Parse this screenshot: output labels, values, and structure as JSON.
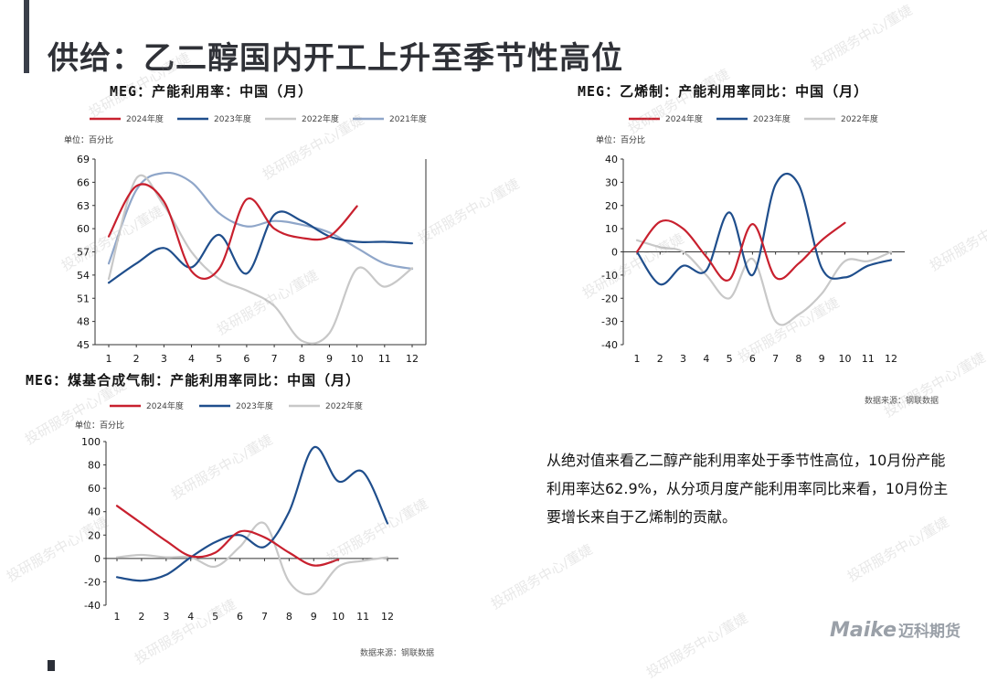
{
  "page": {
    "title": "供给：乙二醇国内开工上升至季节性高位",
    "description": "从绝对值来看乙二醇产能利用率处于季节性高位，10月份产能利用率达62.9%，从分项月度产能利用率同比来看，10月份主要增长来自于乙烯制的贡献。",
    "watermark": "投研服务中心/董婕",
    "logo_en": "Maike",
    "logo_cn": "迈科期货",
    "colors": {
      "accent": "#3a3f4a",
      "s2024": "#c8202e",
      "s2023": "#1f4e8c",
      "s2022": "#c8c8c8",
      "s2021": "#8fa6c9"
    }
  },
  "chart_data": [
    {
      "type": "line",
      "title": "MEG：产能利用率：中国（月）",
      "unit": "单位：百分比",
      "x": [
        1,
        2,
        3,
        4,
        5,
        6,
        7,
        8,
        9,
        10,
        11,
        12
      ],
      "xticks": [
        "1",
        "2",
        "3",
        "4",
        "5",
        "6",
        "7",
        "8",
        "9",
        "10",
        "11",
        "12"
      ],
      "ylim": [
        45,
        69
      ],
      "yticks": [
        45,
        48,
        51,
        54,
        57,
        60,
        63,
        66,
        69
      ],
      "legend_position": "top",
      "series": [
        {
          "name": "2024年度",
          "color": "#c8202e",
          "values": [
            59.0,
            65.5,
            63.5,
            54.5,
            54.8,
            63.8,
            60.0,
            58.8,
            59.0,
            62.9,
            null,
            null
          ]
        },
        {
          "name": "2023年度",
          "color": "#1f4e8c",
          "values": [
            53.0,
            55.5,
            57.5,
            55.0,
            59.2,
            54.2,
            61.8,
            61.0,
            59.0,
            58.3,
            58.3,
            58.1
          ]
        },
        {
          "name": "2022年度",
          "color": "#c8c8c8",
          "values": [
            53.5,
            66.5,
            63.0,
            57.0,
            53.5,
            52.0,
            50.0,
            45.5,
            46.5,
            54.8,
            52.5,
            54.9
          ]
        },
        {
          "name": "2021年度",
          "color": "#8fa6c9",
          "values": [
            55.5,
            65.0,
            67.2,
            66.0,
            62.0,
            60.3,
            61.0,
            60.5,
            59.5,
            57.5,
            55.5,
            54.8
          ]
        }
      ]
    },
    {
      "type": "line",
      "title": "MEG：乙烯制：产能利用率同比：中国（月）",
      "unit": "单位：百分比",
      "x": [
        1,
        2,
        3,
        4,
        5,
        6,
        7,
        8,
        9,
        10,
        11,
        12
      ],
      "xticks": [
        "1",
        "2",
        "3",
        "4",
        "5",
        "6",
        "7",
        "8",
        "9",
        "10",
        "11",
        "12"
      ],
      "ylim": [
        -40,
        40
      ],
      "yticks": [
        -40,
        -30,
        -20,
        -10,
        0,
        10,
        20,
        30,
        40
      ],
      "legend_position": "top",
      "source": "数据来源：钢联数据",
      "series": [
        {
          "name": "2024年度",
          "color": "#c8202e",
          "values": [
            0,
            13,
            10,
            -2,
            -12,
            12,
            -11,
            -5,
            5,
            12.5,
            null,
            null
          ]
        },
        {
          "name": "2023年度",
          "color": "#1f4e8c",
          "values": [
            0,
            -14,
            -6,
            -8,
            17,
            -10,
            29,
            29,
            -7,
            -11,
            -6,
            -3.5
          ]
        },
        {
          "name": "2022年度",
          "color": "#c8c8c8",
          "values": [
            5,
            2,
            0,
            -10,
            -20,
            -3,
            -30,
            -27,
            -18,
            -4,
            -4,
            0
          ]
        }
      ]
    },
    {
      "type": "line",
      "title": "MEG：煤基合成气制：产能利用率同比：中国（月）",
      "unit": "单位：百分比",
      "x": [
        1,
        2,
        3,
        4,
        5,
        6,
        7,
        8,
        9,
        10,
        11,
        12
      ],
      "xticks": [
        "1",
        "2",
        "3",
        "4",
        "5",
        "6",
        "7",
        "8",
        "9",
        "10",
        "11",
        "12"
      ],
      "ylim": [
        -40,
        100
      ],
      "yticks": [
        -40,
        -20,
        0,
        20,
        40,
        60,
        80,
        100
      ],
      "legend_position": "top",
      "source": "数据来源：钢联数据",
      "series": [
        {
          "name": "2024年度",
          "color": "#c8202e",
          "values": [
            45,
            30,
            15,
            2,
            5,
            23,
            18,
            5,
            -6,
            -1,
            null,
            null
          ]
        },
        {
          "name": "2023年度",
          "color": "#1f4e8c",
          "values": [
            -16,
            -19,
            -14,
            1,
            14,
            20,
            10,
            40,
            95,
            66,
            74,
            30
          ]
        },
        {
          "name": "2022年度",
          "color": "#c8c8c8",
          "values": [
            1,
            3,
            1,
            1,
            -7,
            10,
            30,
            -20,
            -30,
            -7,
            -2,
            1
          ]
        }
      ]
    }
  ]
}
